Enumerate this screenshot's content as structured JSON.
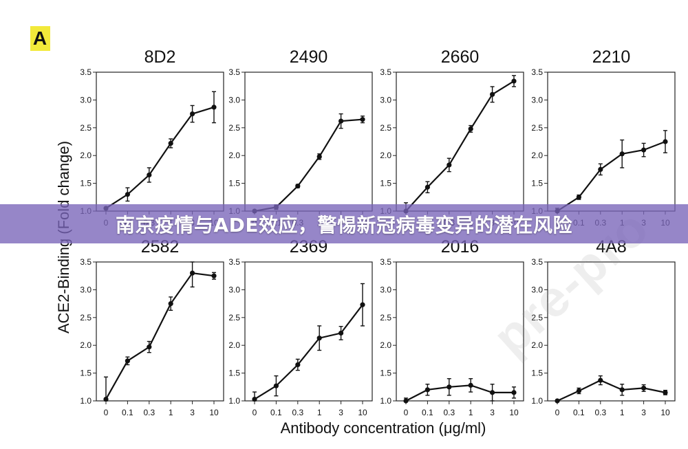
{
  "panel_letter": "A",
  "banner": {
    "text": "南京疫情与ADE效应，警惕新冠病毒变异的潜在风险"
  },
  "watermark": "pre-pro",
  "colors": {
    "line": "#111111",
    "axis": "#222222",
    "banner": "#7864b9",
    "letter_bg": "#f2e93a"
  },
  "chart_data": {
    "type": "line",
    "xlabel": "Antibody concentration (μg/ml)",
    "ylabel": "ACE2-Binding (Fold change)",
    "x_categories": [
      "0",
      "0.1",
      "0.3",
      "1",
      "3",
      "10"
    ],
    "y_ticks": [
      "1.0",
      "1.5",
      "2.0",
      "2.5",
      "3.0",
      "3.5"
    ],
    "ylim": [
      1.0,
      3.5
    ],
    "grid": false,
    "panels": [
      {
        "title": "8D2",
        "values": [
          1.05,
          1.3,
          1.65,
          2.22,
          2.75,
          2.87
        ],
        "errors": [
          0.02,
          0.12,
          0.13,
          0.08,
          0.15,
          0.28
        ]
      },
      {
        "title": "2490",
        "values": [
          1.0,
          1.07,
          1.45,
          1.98,
          2.62,
          2.65
        ],
        "errors": [
          0.02,
          0.04,
          0.03,
          0.05,
          0.13,
          0.06
        ]
      },
      {
        "title": "2660",
        "values": [
          1.0,
          1.43,
          1.83,
          2.48,
          3.1,
          3.34
        ],
        "errors": [
          0.15,
          0.1,
          0.12,
          0.06,
          0.14,
          0.1
        ]
      },
      {
        "title": "2210",
        "values": [
          1.0,
          1.25,
          1.75,
          2.03,
          2.1,
          2.25
        ],
        "errors": [
          0.05,
          0.04,
          0.1,
          0.25,
          0.12,
          0.2
        ]
      },
      {
        "title": "2582",
        "values": [
          1.03,
          1.72,
          1.97,
          2.75,
          3.3,
          3.25
        ],
        "errors": [
          0.4,
          0.07,
          0.1,
          0.12,
          0.25,
          0.06
        ]
      },
      {
        "title": "2369",
        "values": [
          1.03,
          1.27,
          1.65,
          2.13,
          2.22,
          2.73
        ],
        "errors": [
          0.13,
          0.18,
          0.1,
          0.22,
          0.12,
          0.38
        ]
      },
      {
        "title": "2016",
        "values": [
          1.0,
          1.2,
          1.25,
          1.28,
          1.15,
          1.15
        ],
        "errors": [
          0.05,
          0.1,
          0.15,
          0.12,
          0.15,
          0.1
        ]
      },
      {
        "title": "4A8",
        "values": [
          1.0,
          1.18,
          1.37,
          1.2,
          1.23,
          1.15
        ],
        "errors": [
          0.02,
          0.05,
          0.08,
          0.1,
          0.06,
          0.04
        ]
      }
    ]
  }
}
